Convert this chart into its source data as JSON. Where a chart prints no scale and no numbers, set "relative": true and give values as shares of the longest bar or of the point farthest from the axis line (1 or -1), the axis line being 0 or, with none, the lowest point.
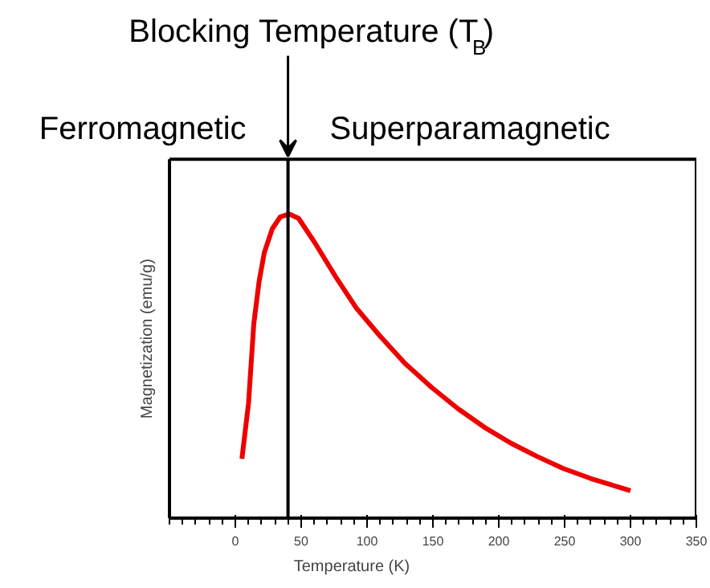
{
  "chart_data": {
    "type": "line",
    "relative": true,
    "xlabel": "Temperature (K)",
    "ylabel": "Magnetization (emu/g)",
    "x": [
      5,
      10,
      14,
      18,
      22,
      28,
      34,
      41,
      48,
      60,
      76,
      92,
      109,
      129,
      149,
      169,
      189,
      209,
      229,
      249,
      270,
      300
    ],
    "series": [
      {
        "color": "#ee0000",
        "values": [
          0.195,
          0.377,
          0.638,
          0.777,
          0.873,
          0.951,
          0.99,
          1,
          0.986,
          0.908,
          0.795,
          0.69,
          0.603,
          0.508,
          0.43,
          0.36,
          0.299,
          0.247,
          0.203,
          0.163,
          0.13,
          0.09
        ]
      }
    ],
    "xlim": [
      -50,
      350
    ],
    "xticks": [
      0,
      50,
      100,
      150,
      200,
      250,
      300,
      350
    ],
    "ref_lines": [
      {
        "axis": "x",
        "value": 40,
        "label": "Blocking Temperature (T$_{B}$)",
        "color": "#000000"
      }
    ],
    "annotations": [
      "Ferromagnetic",
      "Superparamagnetic"
    ],
    "grid": false,
    "line_style": "solid",
    "marker": "none"
  }
}
